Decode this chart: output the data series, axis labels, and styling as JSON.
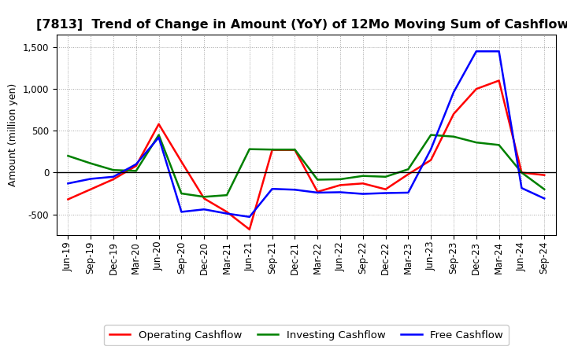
{
  "title": "[7813]  Trend of Change in Amount (YoY) of 12Mo Moving Sum of Cashflows",
  "ylabel": "Amount (million yen)",
  "x_labels": [
    "Jun-19",
    "Sep-19",
    "Dec-19",
    "Mar-20",
    "Jun-20",
    "Sep-20",
    "Dec-20",
    "Mar-21",
    "Jun-21",
    "Sep-21",
    "Dec-21",
    "Mar-22",
    "Jun-22",
    "Sep-22",
    "Dec-22",
    "Mar-23",
    "Jun-23",
    "Sep-23",
    "Dec-23",
    "Mar-24",
    "Jun-24",
    "Sep-24"
  ],
  "operating_cashflow": [
    -320,
    -200,
    -80,
    80,
    580,
    130,
    -310,
    -470,
    -680,
    270,
    270,
    -230,
    -150,
    -130,
    -200,
    -20,
    150,
    700,
    1000,
    1100,
    0,
    -30
  ],
  "investing_cashflow": [
    200,
    110,
    30,
    20,
    450,
    -250,
    -290,
    -270,
    280,
    275,
    275,
    -85,
    -80,
    -40,
    -50,
    40,
    450,
    430,
    360,
    330,
    0,
    -200
  ],
  "free_cashflow": [
    -130,
    -75,
    -50,
    100,
    420,
    -470,
    -440,
    -490,
    -530,
    -195,
    -205,
    -240,
    -235,
    -255,
    -245,
    -240,
    280,
    960,
    1450,
    1450,
    -185,
    -310
  ],
  "operating_color": "#ff0000",
  "investing_color": "#008000",
  "free_color": "#0000ff",
  "ylim": [
    -750,
    1650
  ],
  "yticks": [
    -500,
    0,
    500,
    1000,
    1500
  ],
  "background_color": "#ffffff",
  "grid_color": "#999999",
  "line_width": 1.8,
  "title_fontsize": 11.5,
  "legend_fontsize": 9.5,
  "tick_fontsize": 8.5
}
